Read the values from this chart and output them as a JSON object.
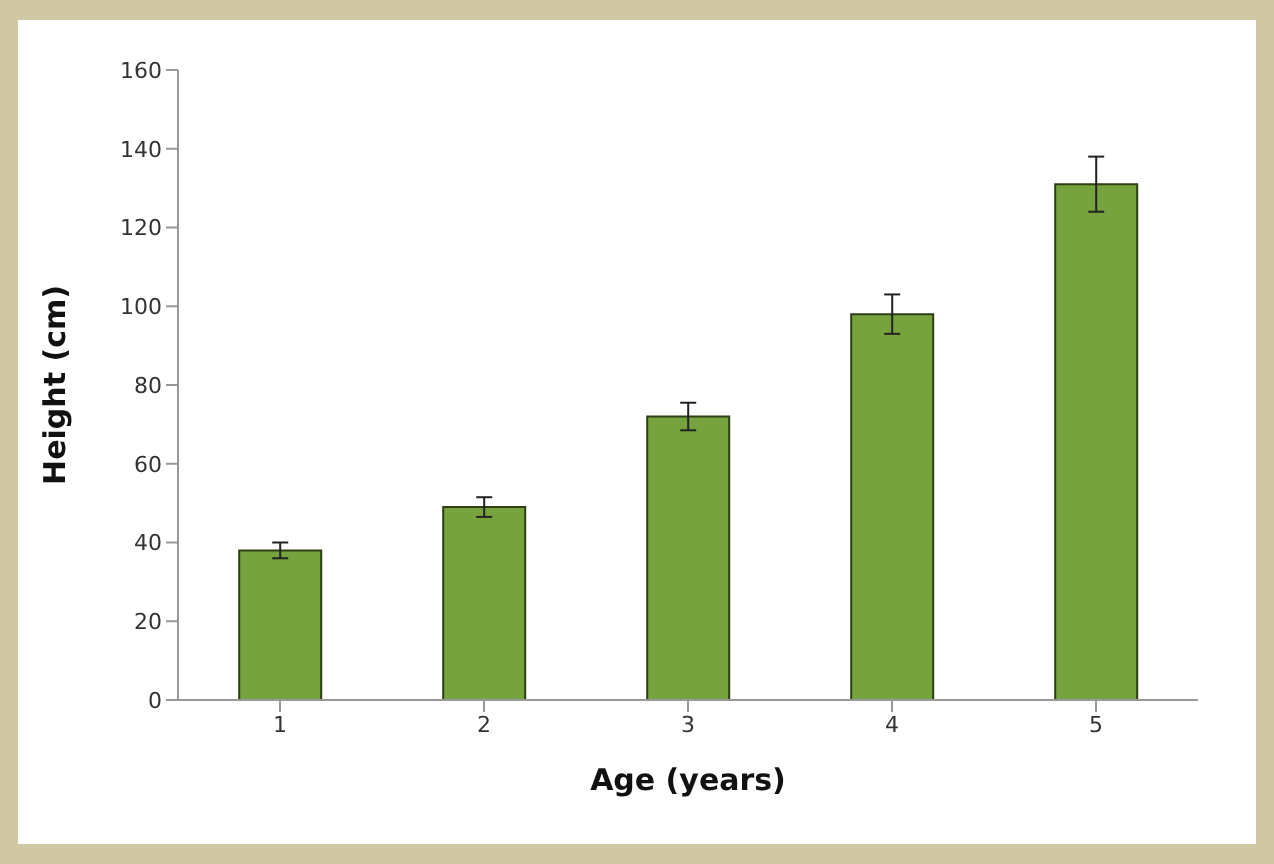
{
  "chart_data": {
    "type": "bar",
    "xlabel": "Age (years)",
    "ylabel": "Height (cm)",
    "categories": [
      "1",
      "2",
      "3",
      "4",
      "5"
    ],
    "values": [
      38,
      49,
      72,
      98,
      131
    ],
    "errors": [
      2,
      2.5,
      3.5,
      5,
      7
    ],
    "color": "#76a33d",
    "ylim": [
      0,
      160
    ],
    "yticks": [
      0,
      20,
      40,
      60,
      80,
      100,
      120,
      140,
      160
    ]
  }
}
